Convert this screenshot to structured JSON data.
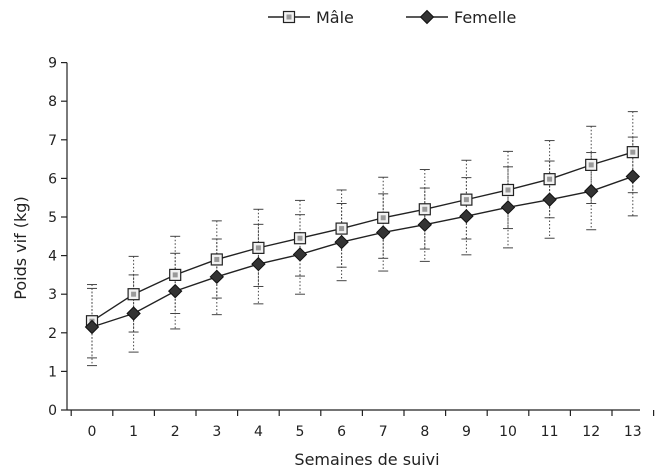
{
  "chart_data": {
    "type": "line",
    "xlabel": "Semaines de suivi",
    "ylabel": "Poids vif (kg)",
    "x": [
      0,
      1,
      2,
      3,
      4,
      5,
      6,
      7,
      8,
      9,
      10,
      11,
      12,
      13
    ],
    "xlim": [
      0,
      13
    ],
    "ylim": [
      0,
      9
    ],
    "yticks": [
      0,
      1,
      2,
      3,
      4,
      5,
      6,
      7,
      8,
      9
    ],
    "grid": false,
    "legend_position": "top-center",
    "error_bars": true,
    "series": [
      {
        "name": "Mâle",
        "marker": "square",
        "values": [
          2.3,
          3.0,
          3.5,
          3.9,
          4.2,
          4.45,
          4.7,
          4.98,
          5.2,
          5.45,
          5.7,
          5.98,
          6.35,
          6.68
        ],
        "error": [
          0.95,
          0.98,
          1.0,
          1.0,
          1.0,
          0.98,
          1.0,
          1.05,
          1.03,
          1.02,
          1.0,
          1.0,
          1.0,
          1.05
        ]
      },
      {
        "name": "Femelle",
        "marker": "diamond",
        "values": [
          2.15,
          2.5,
          3.08,
          3.45,
          3.78,
          4.03,
          4.35,
          4.6,
          4.8,
          5.02,
          5.25,
          5.45,
          5.67,
          6.05
        ],
        "error": [
          1.0,
          1.0,
          0.98,
          0.98,
          1.03,
          1.03,
          1.0,
          1.0,
          0.95,
          1.0,
          1.05,
          1.0,
          1.0,
          1.02
        ]
      }
    ]
  }
}
